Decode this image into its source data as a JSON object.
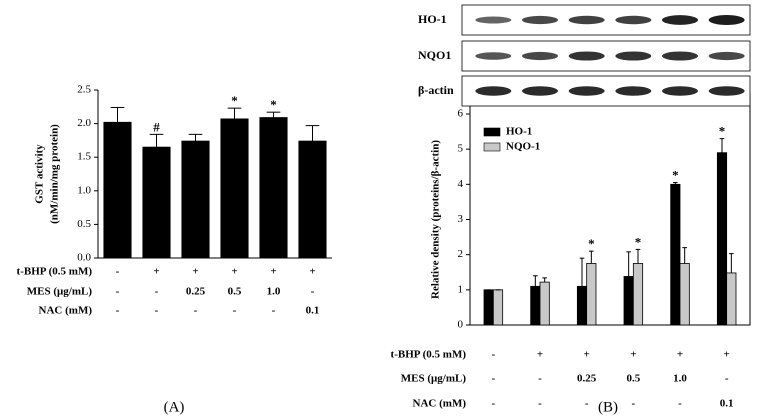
{
  "chart_data": [
    {
      "type": "bar",
      "panel_label": "(A)",
      "ylabel": [
        "GST activity",
        "(nM/min/mg protein)"
      ],
      "categories": [
        null,
        null,
        null,
        null,
        null,
        null
      ],
      "values": [
        2.02,
        1.65,
        1.74,
        2.07,
        2.09,
        1.74
      ],
      "errors": [
        0.22,
        0.19,
        0.1,
        0.16,
        0.08,
        0.23
      ],
      "annotations": [
        null,
        "#",
        null,
        "*",
        "*",
        null
      ],
      "color": "#000000",
      "ylim": [
        0,
        2.5
      ],
      "yticks": [
        {
          "value": 0,
          "label": "0.0"
        },
        0.5,
        {
          "value": 1,
          "label": "1.0"
        },
        1.5,
        {
          "value": 2,
          "label": "2.0"
        },
        2.5
      ],
      "conditions": [
        {
          "label": "t-BHP (0.5 mM)",
          "cells": [
            "-",
            "+",
            "+",
            "+",
            "+",
            "+"
          ]
        },
        {
          "label": "MES (μg/mL)",
          "cells": [
            "-",
            "-",
            "0.25",
            "0.5",
            "1.0",
            "-"
          ]
        },
        {
          "label": "NAC (mM)",
          "cells": [
            "-",
            "-",
            "-",
            "-",
            "-",
            "0.1"
          ]
        }
      ]
    },
    {
      "type": "bar",
      "panel_label": "(B)",
      "ylabel": [
        "Relative density (proteins/β-actin)"
      ],
      "blot_labels": [
        "HO-1",
        "NQO1",
        "β-actin"
      ],
      "categories": [
        null,
        null,
        null,
        null,
        null,
        null
      ],
      "series": [
        {
          "name": "HO-1",
          "color": "#000000",
          "values": [
            1.0,
            1.1,
            1.1,
            1.38,
            4.0,
            4.9
          ],
          "errors": [
            0,
            0.3,
            0.8,
            0.7,
            0.05,
            0.4
          ],
          "annotations": [
            null,
            null,
            null,
            null,
            "*",
            "*"
          ]
        },
        {
          "name": "NQO-1",
          "color": "#c8c8c8",
          "values": [
            1.0,
            1.22,
            1.75,
            1.75,
            1.75,
            1.48
          ],
          "errors": [
            0,
            0.12,
            0.35,
            0.4,
            0.45,
            0.55
          ],
          "annotations": [
            null,
            null,
            "*",
            "*",
            null,
            null
          ]
        }
      ],
      "legend": "upper left",
      "ylim": [
        0,
        6
      ],
      "yticks": [
        0,
        1,
        2,
        3,
        4,
        5,
        6
      ],
      "conditions": [
        {
          "label": "t-BHP (0.5 mM)",
          "cells": [
            "-",
            "+",
            "+",
            "+",
            "+",
            "+"
          ]
        },
        {
          "label": "MES (μg/mL)",
          "cells": [
            "-",
            "-",
            "0.25",
            "0.5",
            "1.0",
            "-"
          ]
        },
        {
          "label": "NAC (mM)",
          "cells": [
            "-",
            "-",
            "-",
            "-",
            "-",
            "0.1"
          ]
        }
      ]
    }
  ]
}
